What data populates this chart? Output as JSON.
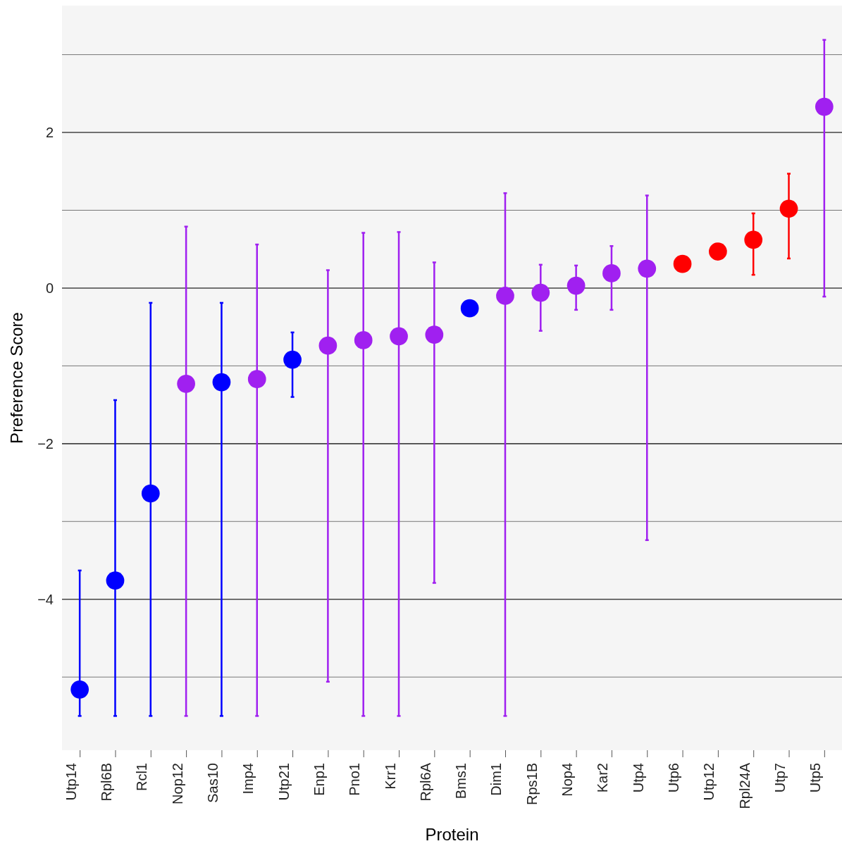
{
  "chart_data": {
    "type": "scatter",
    "xlabel": "Protein",
    "ylabel": "Preference Score",
    "categories": [
      "Utp14",
      "Rpl6B",
      "Rcl1",
      "Nop12",
      "Sas10",
      "Imp4",
      "Utp21",
      "Enp1",
      "Pno1",
      "Krr1",
      "Rpl6A",
      "Bms1",
      "Dim1",
      "Rps1B",
      "Nop4",
      "Kar2",
      "Utp4",
      "Utp6",
      "Utp12",
      "Rpl24A",
      "Utp7",
      "Utp5"
    ],
    "values": [
      -5.16,
      -3.76,
      -2.64,
      -1.23,
      -1.21,
      -1.17,
      -0.92,
      -0.74,
      -0.67,
      -0.62,
      -0.6,
      -0.26,
      -0.1,
      -0.06,
      0.03,
      0.19,
      0.25,
      0.31,
      0.47,
      0.62,
      1.02,
      2.33
    ],
    "errors": [
      [
        -5.5,
        -3.63
      ],
      [
        -5.5,
        -1.44
      ],
      [
        -5.5,
        -0.19
      ],
      [
        -5.5,
        0.79
      ],
      [
        -5.5,
        -0.19
      ],
      [
        -5.5,
        0.56
      ],
      [
        -1.4,
        -0.57
      ],
      [
        -5.06,
        0.23
      ],
      [
        -5.5,
        0.71
      ],
      [
        -5.5,
        0.72
      ],
      [
        -3.79,
        0.33
      ],
      null,
      [
        -5.5,
        1.22
      ],
      [
        -0.55,
        0.3
      ],
      [
        -0.28,
        0.29
      ],
      [
        -0.28,
        0.54
      ],
      [
        -3.24,
        1.19
      ],
      null,
      null,
      [
        0.17,
        0.96
      ],
      [
        0.38,
        1.47
      ],
      [
        -0.11,
        3.19
      ]
    ],
    "colors": [
      "#0000ff",
      "#0000ff",
      "#0000ff",
      "#a020f0",
      "#0000ff",
      "#a020f0",
      "#0000ff",
      "#a020f0",
      "#a020f0",
      "#a020f0",
      "#a020f0",
      "#0000ff",
      "#a020f0",
      "#a020f0",
      "#a020f0",
      "#a020f0",
      "#a020f0",
      "#ff0000",
      "#ff0000",
      "#ff0000",
      "#ff0000",
      "#a020f0"
    ],
    "ylim": [
      -5.94,
      3.63
    ],
    "yticks": [
      {
        "value": -5,
        "label": null
      },
      -4,
      {
        "value": -3,
        "label": null
      },
      -2,
      {
        "value": -1,
        "label": null
      },
      0,
      {
        "value": 1,
        "label": null
      },
      2,
      {
        "value": 3,
        "label": null
      }
    ],
    "grid": "y",
    "marker": "circle"
  }
}
